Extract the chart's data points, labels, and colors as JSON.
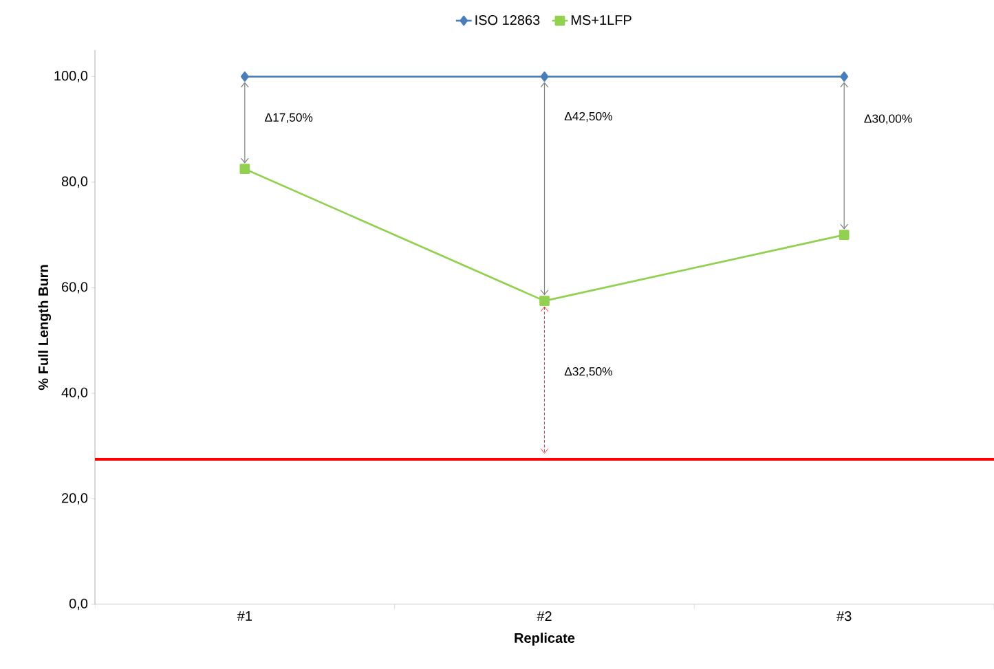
{
  "chart_data": {
    "type": "line",
    "xlabel": "Replicate",
    "ylabel": "% Full Length Burn",
    "categories": [
      "#1",
      "#2",
      "#3"
    ],
    "series": [
      {
        "name": "ISO 12863",
        "color": "#4a7ebb",
        "values": [
          100,
          100,
          100
        ],
        "marker": "diamond"
      },
      {
        "name": "MS+1LFP",
        "color": "#92d050",
        "values": [
          82.5,
          57.5,
          70
        ],
        "marker": "square"
      }
    ],
    "ylim": [
      0,
      105
    ],
    "yticks": [
      {
        "value": 0,
        "label": "0,0"
      },
      {
        "value": 20,
        "label": "20,0"
      },
      {
        "value": 40,
        "label": "40,0"
      },
      {
        "value": 60,
        "label": "60,0"
      },
      {
        "value": 80,
        "label": "80,0"
      },
      {
        "value": 100,
        "label": "100,0"
      }
    ],
    "ref_lines": [
      {
        "axis": "y",
        "value": 27.5,
        "color": "#ff0000"
      }
    ],
    "annotations": [
      "Δ17,50%",
      "Δ42,50%",
      "Δ30,00%",
      "Δ32,50%"
    ],
    "legend": "top",
    "grid": false,
    "line_style": "solid"
  }
}
